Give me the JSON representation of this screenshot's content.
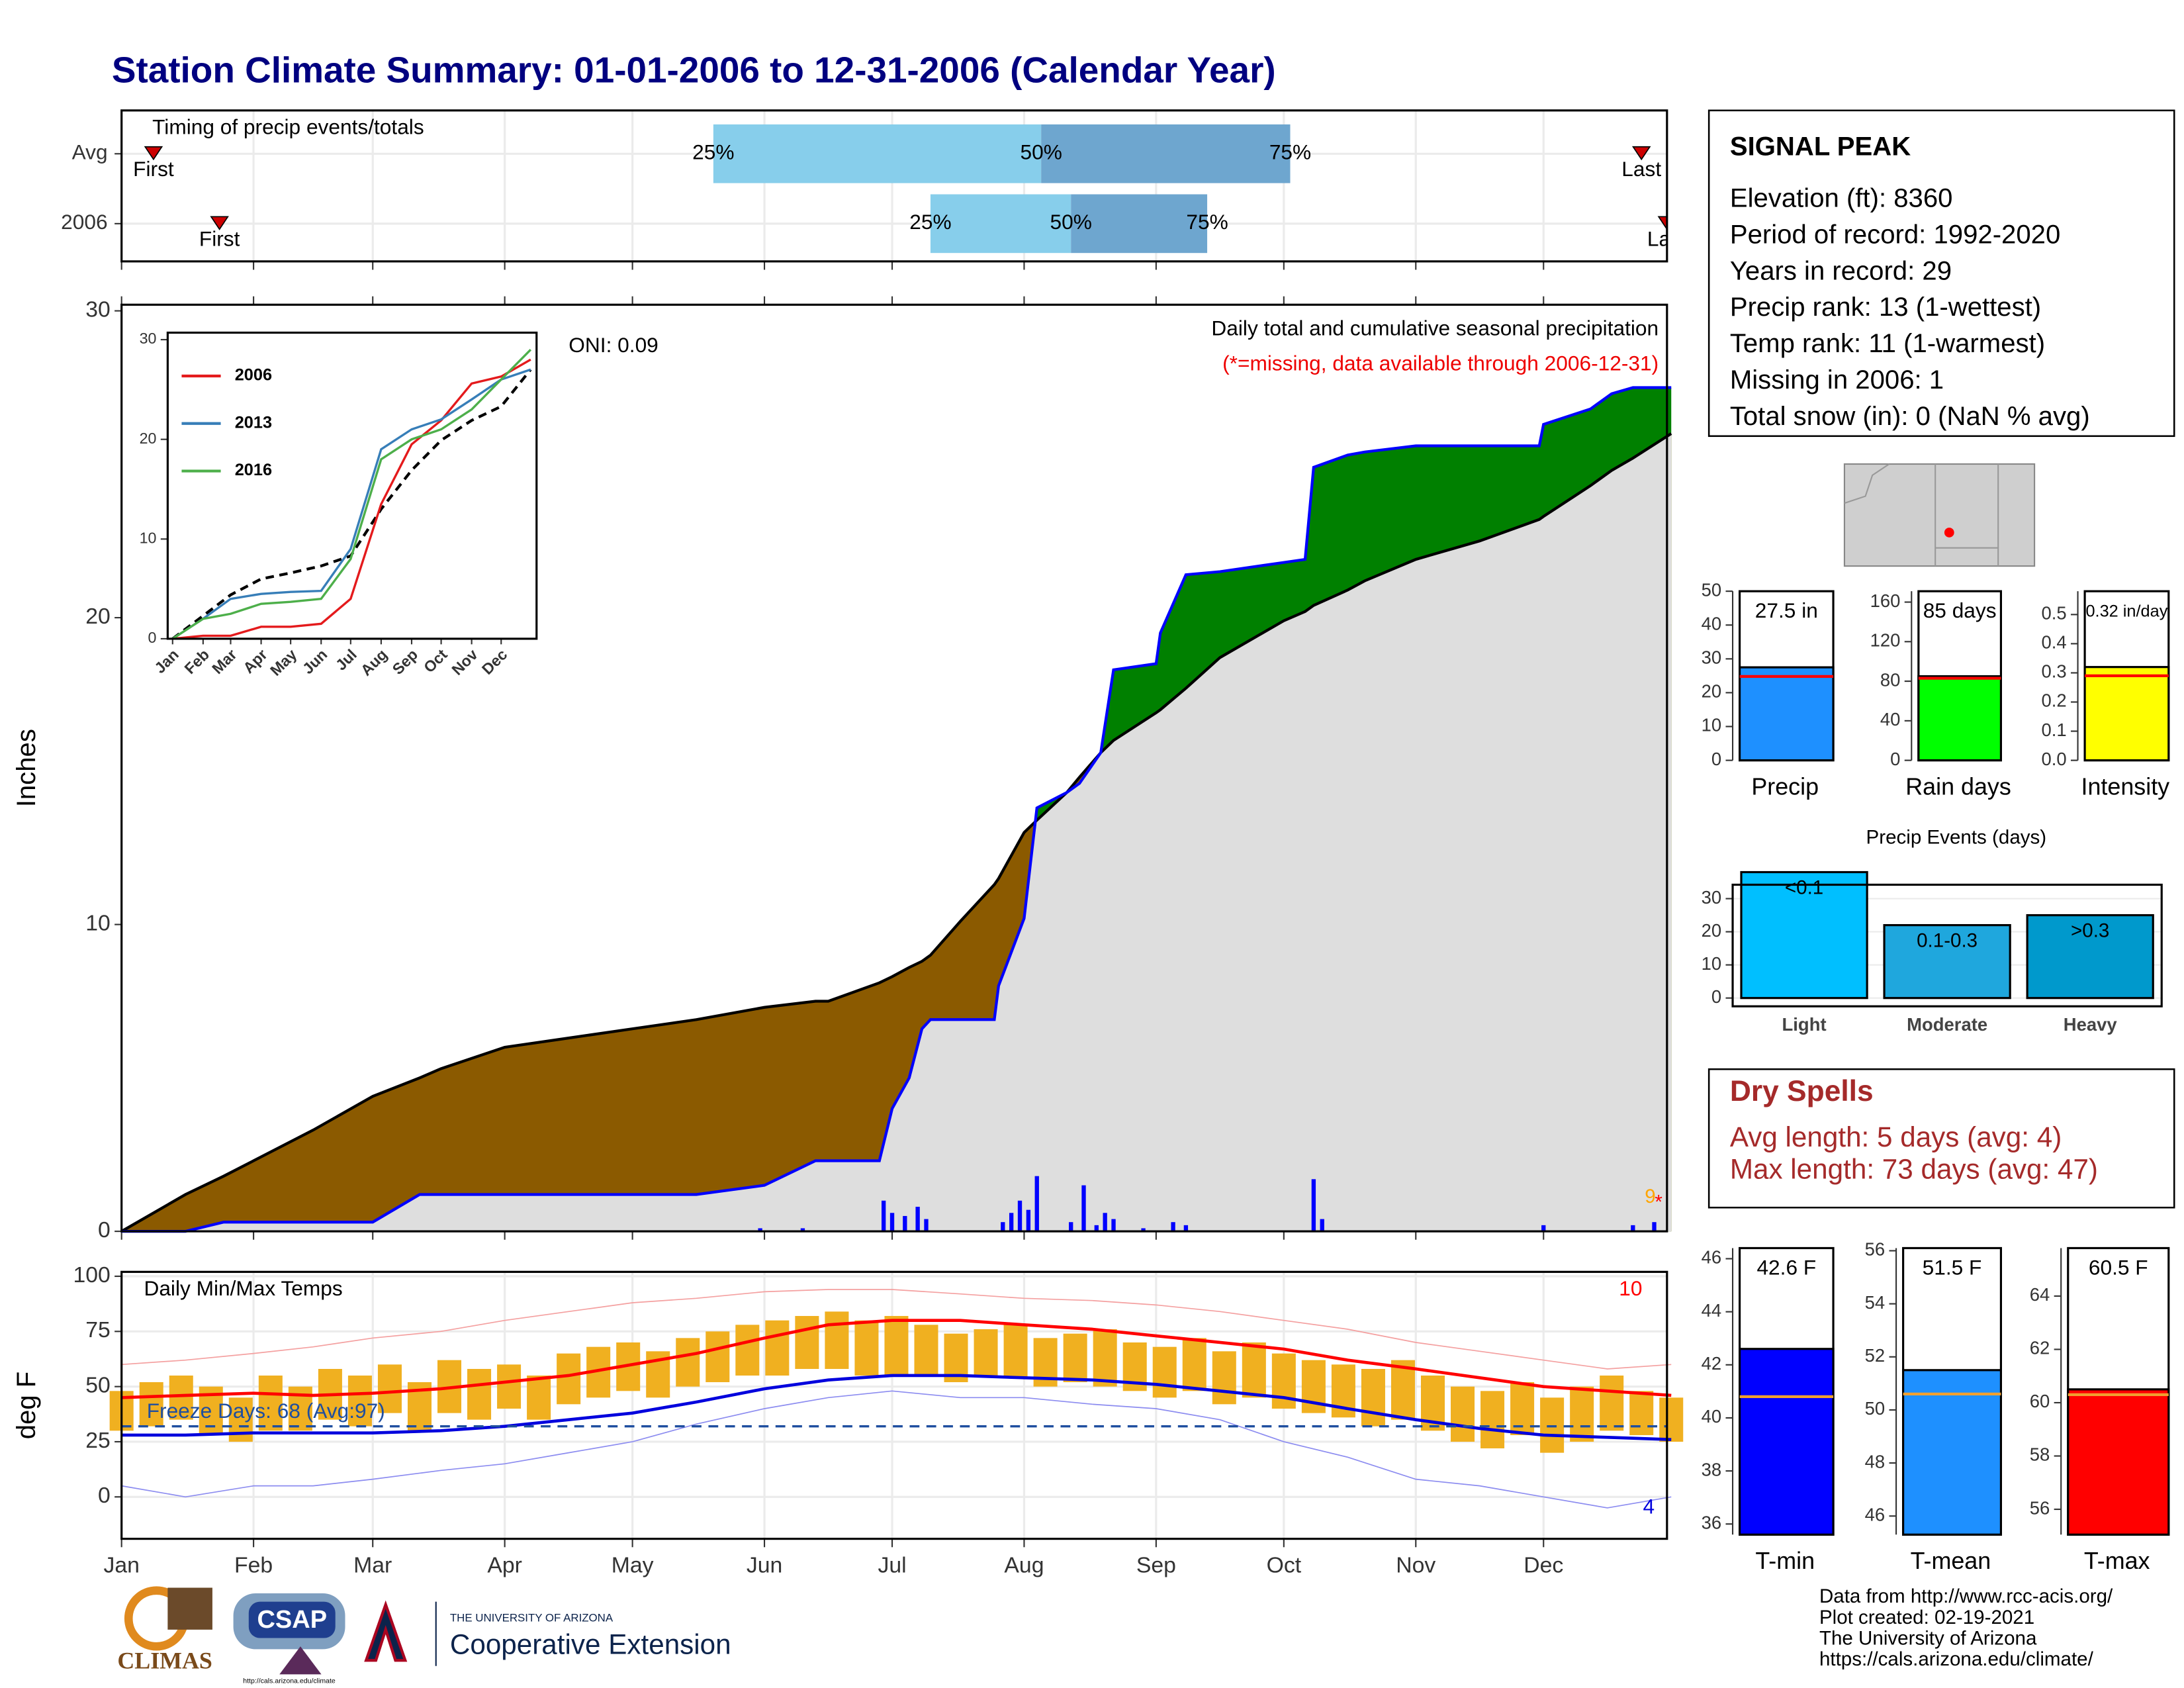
{
  "title": "Station Climate Summary: 01-01-2006 to 12-31-2006 (Calendar Year)",
  "info_box": {
    "title": "SIGNAL PEAK",
    "lines": [
      "Elevation (ft): 8360",
      "Period of record: 1992-2020",
      "Years in record: 29",
      "Precip rank: 13 (1-wettest)",
      "Temp rank: 11 (1-warmest)",
      "Missing in 2006: 1",
      "Total snow (in): 0 (NaN % avg)"
    ]
  },
  "dry_spells": {
    "title": "Dry Spells",
    "lines": [
      "Avg length: 5 days (avg: 4)",
      "Max length: 73 days (avg: 47)"
    ]
  },
  "footer": [
    "Data from http://www.rcc-acis.org/",
    "Plot created: 02-19-2021",
    "The University of Arizona",
    "https://cals.arizona.edu/climate/"
  ],
  "logos": [
    "CLIMAS",
    "CSAP",
    "http://cals.arizona.edu/climate",
    "THE UNIVERSITY OF ARIZONA",
    "Cooperative Extension"
  ],
  "chart_data": [
    {
      "type": "timing",
      "title": "Timing of precip events/totals",
      "categories": [
        "Avg",
        "2006"
      ],
      "marker_labels": [
        "First",
        "25%",
        "50%",
        "75%",
        "Last"
      ],
      "rows": [
        [
          7.5,
          139,
          216,
          274.5,
          357
        ],
        [
          23,
          190,
          223,
          255,
          363
        ]
      ],
      "colors": [
        "#87ceeb",
        "#6ea6cf"
      ],
      "marker_color": "#cc0000",
      "xlim": [
        0,
        363
      ],
      "xticks": [
        0,
        31,
        59,
        90,
        120,
        151,
        181,
        212,
        243,
        273,
        304,
        334
      ],
      "grid": true
    },
    {
      "type": "area",
      "ylabel": "Inches",
      "annotations": [
        "Daily total and cumulative seasonal precipitation",
        "(*=missing, data available through 2006-12-31)",
        "ONI: 0.09"
      ],
      "missing_marks": [
        "9",
        "*"
      ],
      "x": [
        0,
        15,
        24,
        31,
        45,
        59,
        70,
        75,
        90,
        105,
        120,
        135,
        151,
        163,
        166,
        178,
        181,
        185,
        188,
        190,
        197,
        205,
        206,
        212,
        215,
        222,
        225,
        230,
        233,
        243,
        244,
        250,
        258,
        273,
        278,
        280,
        288,
        292,
        304,
        319,
        333,
        334,
        345,
        350,
        355,
        364
      ],
      "series": [
        {
          "color": "#0000ff",
          "values": [
            0,
            0,
            0.3,
            0.3,
            0.3,
            0.3,
            1.2,
            1.2,
            1.2,
            1.2,
            1.2,
            1.2,
            1.5,
            2.3,
            2.3,
            2.3,
            4.0,
            5.0,
            6.6,
            6.9,
            6.9,
            6.9,
            8.0,
            10.2,
            13.8,
            14.3,
            14.6,
            15.6,
            18.3,
            18.5,
            19.5,
            21.4,
            21.5,
            21.8,
            21.9,
            24.9,
            25.3,
            25.4,
            25.6,
            25.6,
            25.6,
            26.3,
            26.8,
            27.3,
            27.5,
            27.5
          ]
        },
        {
          "color": "#000000",
          "values": [
            0,
            1.2,
            1.8,
            2.3,
            3.3,
            4.4,
            5.0,
            5.3,
            6.0,
            6.3,
            6.6,
            6.9,
            7.3,
            7.5,
            7.5,
            8.1,
            8.3,
            8.6,
            8.8,
            9.0,
            10.1,
            11.3,
            11.5,
            13.0,
            13.4,
            14.3,
            14.8,
            15.6,
            16.0,
            16.9,
            17.0,
            17.7,
            18.7,
            19.9,
            20.2,
            20.4,
            20.9,
            21.2,
            21.9,
            22.5,
            23.2,
            23.3,
            24.3,
            24.8,
            25.2,
            26.0
          ]
        }
      ],
      "fill_above": "#008000",
      "fill_below": "#8b5a00",
      "fill_base": "#dedede",
      "daily_x": [
        150,
        160,
        179,
        181,
        184,
        187,
        189,
        207,
        209,
        211,
        213,
        215,
        223,
        226,
        229,
        231,
        233,
        240,
        247,
        250,
        280,
        282,
        334,
        355,
        360
      ],
      "daily_values": [
        0.1,
        0.1,
        1.0,
        0.6,
        0.5,
        0.8,
        0.4,
        0.3,
        0.6,
        1.0,
        0.7,
        1.8,
        0.3,
        1.5,
        0.2,
        0.6,
        0.4,
        0.1,
        0.3,
        0.2,
        1.7,
        0.4,
        0.2,
        0.2,
        0.3
      ],
      "daily_color": "#0000ff",
      "xlim": [
        0,
        363
      ],
      "xticks": [
        0,
        31,
        59,
        90,
        120,
        151,
        181,
        212,
        243,
        273,
        304,
        334
      ],
      "ylim": [
        0,
        30.2
      ],
      "yticks": [
        0,
        10,
        20,
        30
      ]
    },
    {
      "type": "line",
      "x": [
        0,
        31,
        59,
        90,
        120,
        151,
        181,
        212,
        243,
        273,
        304,
        334,
        364
      ],
      "series": [
        {
          "name": "2006",
          "color": "#e41a1c",
          "values": [
            0,
            0.3,
            0.3,
            1.2,
            1.2,
            1.5,
            4.0,
            13.5,
            19.5,
            21.9,
            25.6,
            26.3,
            28
          ]
        },
        {
          "name": "2013",
          "color": "#377eb8",
          "values": [
            0,
            2,
            4,
            4.5,
            4.7,
            4.8,
            9,
            19,
            21,
            22,
            24,
            26,
            27
          ]
        },
        {
          "name": "2016",
          "color": "#4daf4a",
          "values": [
            0,
            2,
            2.5,
            3.5,
            3.7,
            4,
            8,
            18,
            20,
            21,
            23,
            26,
            29
          ]
        }
      ],
      "avg": {
        "color": "#000000",
        "values": [
          0,
          2.3,
          4.4,
          6,
          6.6,
          7.3,
          8.3,
          13,
          16.9,
          19.9,
          21.9,
          23.3,
          27
        ]
      },
      "xlim": [
        -5,
        370
      ],
      "xticks": [
        {
          "value": 0,
          "label": "Jan"
        },
        {
          "value": 31,
          "label": "Feb"
        },
        {
          "value": 59,
          "label": "Mar"
        },
        {
          "value": 90,
          "label": "Apr"
        },
        {
          "value": 120,
          "label": "May"
        },
        {
          "value": 151,
          "label": "Jun"
        },
        {
          "value": 181,
          "label": "Jul"
        },
        {
          "value": 212,
          "label": "Aug"
        },
        {
          "value": 243,
          "label": "Sep"
        },
        {
          "value": 273,
          "label": "Oct"
        },
        {
          "value": 304,
          "label": "Nov"
        },
        {
          "value": 334,
          "label": "Dec"
        }
      ],
      "ylim": [
        0,
        30.7
      ],
      "yticks": [
        0,
        10,
        20,
        30
      ]
    },
    {
      "type": "range",
      "title": "Daily Min/Max Temps",
      "ylabel": "deg F",
      "annotations": [
        "10",
        "4",
        "Freeze Days: 68 (Avg:97)"
      ],
      "x": [
        0,
        15,
        31,
        45,
        59,
        75,
        90,
        105,
        120,
        135,
        151,
        166,
        181,
        197,
        212,
        228,
        243,
        258,
        273,
        288,
        304,
        319,
        334,
        349,
        364
      ],
      "avg_max": {
        "color": "#ff0000",
        "values": [
          45,
          46,
          47,
          46,
          47,
          49,
          52,
          55,
          60,
          65,
          72,
          78,
          80,
          80,
          78,
          76,
          73,
          70,
          67,
          62,
          58,
          54,
          50,
          48,
          46
        ]
      },
      "avg_min": {
        "color": "#0000dd",
        "values": [
          28,
          28,
          29,
          29,
          29,
          30,
          32,
          35,
          38,
          43,
          49,
          53,
          55,
          55,
          54,
          53,
          51,
          48,
          45,
          40,
          35,
          31,
          28,
          27,
          26
        ]
      },
      "record_high": {
        "color": "#f4a0a0",
        "values": [
          60,
          62,
          65,
          68,
          72,
          75,
          80,
          84,
          88,
          90,
          93,
          94,
          94,
          92,
          90,
          89,
          87,
          84,
          80,
          76,
          70,
          66,
          62,
          58,
          60
        ]
      },
      "record_low": {
        "color": "#8c8cf0",
        "values": [
          5,
          0,
          5,
          5,
          8,
          12,
          15,
          20,
          25,
          33,
          40,
          45,
          48,
          45,
          45,
          42,
          40,
          35,
          25,
          18,
          8,
          5,
          0,
          -5,
          0
        ]
      },
      "obs_x": [
        0,
        7,
        14,
        21,
        28,
        35,
        42,
        49,
        56,
        63,
        70,
        77,
        84,
        91,
        98,
        105,
        112,
        119,
        126,
        133,
        140,
        147,
        154,
        161,
        168,
        175,
        182,
        189,
        196,
        203,
        210,
        217,
        224,
        231,
        238,
        245,
        252,
        259,
        266,
        273,
        280,
        287,
        294,
        301,
        308,
        315,
        322,
        329,
        336,
        343,
        350,
        357,
        364
      ],
      "tmax": [
        48,
        52,
        55,
        50,
        45,
        55,
        50,
        58,
        55,
        60,
        52,
        62,
        58,
        60,
        55,
        65,
        68,
        70,
        66,
        72,
        75,
        78,
        80,
        82,
        84,
        80,
        82,
        78,
        74,
        76,
        78,
        72,
        74,
        76,
        70,
        68,
        72,
        66,
        70,
        65,
        62,
        60,
        58,
        62,
        55,
        50,
        48,
        52,
        45,
        50,
        55,
        48,
        45
      ],
      "tmin": [
        30,
        32,
        35,
        28,
        25,
        30,
        30,
        35,
        32,
        38,
        30,
        38,
        35,
        40,
        35,
        42,
        45,
        48,
        45,
        50,
        52,
        55,
        55,
        58,
        58,
        55,
        55,
        55,
        52,
        55,
        54,
        50,
        52,
        50,
        48,
        45,
        48,
        42,
        45,
        40,
        38,
        36,
        32,
        35,
        30,
        25,
        22,
        28,
        20,
        25,
        30,
        28,
        25
      ],
      "obs_color": "#f0b020",
      "freeze_threshold": 32,
      "freeze_color": "#1f4e9f",
      "xlim": [
        0,
        363
      ],
      "xticks": [
        {
          "value": 0,
          "label": "Jan"
        },
        {
          "value": 31,
          "label": "Feb"
        },
        {
          "value": 59,
          "label": "Mar"
        },
        {
          "value": 90,
          "label": "Apr"
        },
        {
          "value": 120,
          "label": "May"
        },
        {
          "value": 151,
          "label": "Jun"
        },
        {
          "value": 181,
          "label": "Jul"
        },
        {
          "value": 212,
          "label": "Aug"
        },
        {
          "value": 243,
          "label": "Sep"
        },
        {
          "value": 273,
          "label": "Oct"
        },
        {
          "value": 304,
          "label": "Nov"
        },
        {
          "value": 334,
          "label": "Dec"
        }
      ],
      "ylim": [
        -19,
        102
      ],
      "yticks": [
        0,
        25,
        50,
        75,
        100
      ],
      "grid": true
    },
    {
      "type": "gauge",
      "label": "Precip",
      "values": [
        27.5
      ],
      "value_labels": [
        "27.5 in"
      ],
      "avg": 24.8,
      "color": "#1e90ff",
      "avg_color": "#ff0000",
      "ylim": [
        0,
        50
      ],
      "yticks": [
        0,
        10,
        20,
        30,
        40,
        50
      ]
    },
    {
      "type": "gauge",
      "label": "Rain days",
      "values": [
        85
      ],
      "value_labels": [
        "85 days"
      ],
      "avg": 83,
      "color": "#00ff00",
      "avg_color": "#ff0000",
      "ylim": [
        0,
        171
      ],
      "yticks": [
        0,
        40,
        80,
        120,
        160
      ]
    },
    {
      "type": "gauge",
      "label": "Intensity",
      "values": [
        0.32
      ],
      "value_labels": [
        "0.32 in/day"
      ],
      "avg": 0.29,
      "color": "#ffff00",
      "avg_color": "#ff0000",
      "ylim": [
        0,
        0.58
      ],
      "yticks": [
        {
          "value": 0,
          "label": "0.0"
        },
        0.1,
        0.2,
        0.3,
        0.4,
        0.5
      ]
    },
    {
      "type": "bar",
      "title": "Precip Events (days)",
      "categories": [
        "Light",
        "Moderate",
        "Heavy"
      ],
      "bar_labels": [
        "<0.1",
        "0.1-0.3",
        ">0.3"
      ],
      "values": [
        38,
        22,
        25
      ],
      "colors": [
        "#00bfff",
        "#1fa7dd",
        "#0099cc"
      ],
      "ylim": [
        -2.5,
        34.2
      ],
      "yticks": [
        0,
        10,
        20,
        30
      ],
      "grid": true
    },
    {
      "type": "gauge",
      "label": "T-min",
      "values": [
        42.6
      ],
      "value_labels": [
        "42.6 F"
      ],
      "avg": 40.8,
      "color": "#0000ff",
      "avg_color": "#f0a030",
      "ylim": [
        35.6,
        46.4
      ],
      "yticks": [
        36,
        38,
        40,
        42,
        44,
        46
      ]
    },
    {
      "type": "gauge",
      "label": "T-mean",
      "values": [
        51.5
      ],
      "value_labels": [
        "51.5 F"
      ],
      "avg": 50.6,
      "color": "#1e90ff",
      "avg_color": "#f0a030",
      "ylim": [
        45.3,
        56.1
      ],
      "yticks": [
        46,
        48,
        50,
        52,
        54,
        56
      ]
    },
    {
      "type": "gauge",
      "label": "T-max",
      "values": [
        60.5
      ],
      "value_labels": [
        "60.5 F"
      ],
      "avg": 60.3,
      "color": "#ff0000",
      "avg_color": "#f0a030",
      "ylim": [
        55.05,
        65.8
      ],
      "yticks": [
        56,
        58,
        60,
        62,
        64
      ]
    }
  ]
}
